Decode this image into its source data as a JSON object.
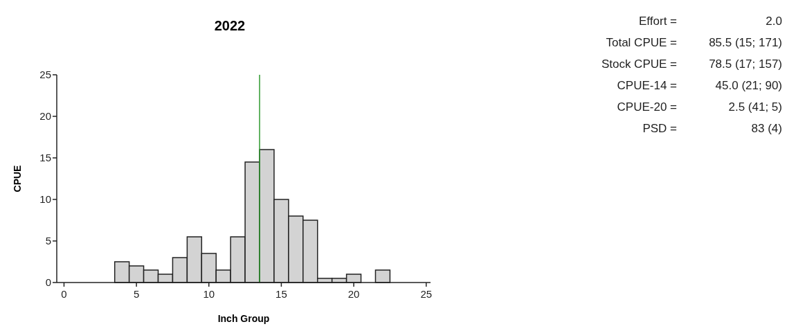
{
  "chart_data": {
    "type": "histogram",
    "title": "2022",
    "xlabel": "Inch Group",
    "ylabel": "CPUE",
    "bins": [
      3.5,
      4.5,
      5.5,
      6.5,
      7.5,
      8.5,
      9.5,
      10.5,
      11.5,
      12.5,
      13.5,
      14.5,
      15.5,
      16.5,
      17.5,
      18.5,
      19.5,
      20.5,
      21.5,
      22.5
    ],
    "values": [
      2.5,
      2,
      1.5,
      1,
      3,
      5.5,
      3.5,
      1.5,
      5.5,
      14.5,
      16,
      10,
      8,
      7.5,
      0.5,
      0.5,
      1,
      0,
      1.5
    ],
    "color": "#d3d3d3",
    "xlim": [
      -0.5,
      25.3
    ],
    "xticks": [
      0,
      5,
      10,
      15,
      20,
      25
    ],
    "ylim": [
      0,
      25
    ],
    "yticks": [
      0,
      5,
      10,
      15,
      20,
      25
    ],
    "ref_lines": [
      {
        "axis": "x",
        "value": 13.5,
        "color": "#2e9a2e"
      }
    ],
    "grid": false,
    "annotations": [
      "Effort = 2.0",
      "Total CPUE = 85.5 (15; 171)",
      "Stock CPUE = 78.5 (17; 157)",
      "CPUE-14 = 45.0 (21; 90)",
      "CPUE-20 = 2.5 (41; 5)",
      "PSD = 83 (4)"
    ]
  }
}
